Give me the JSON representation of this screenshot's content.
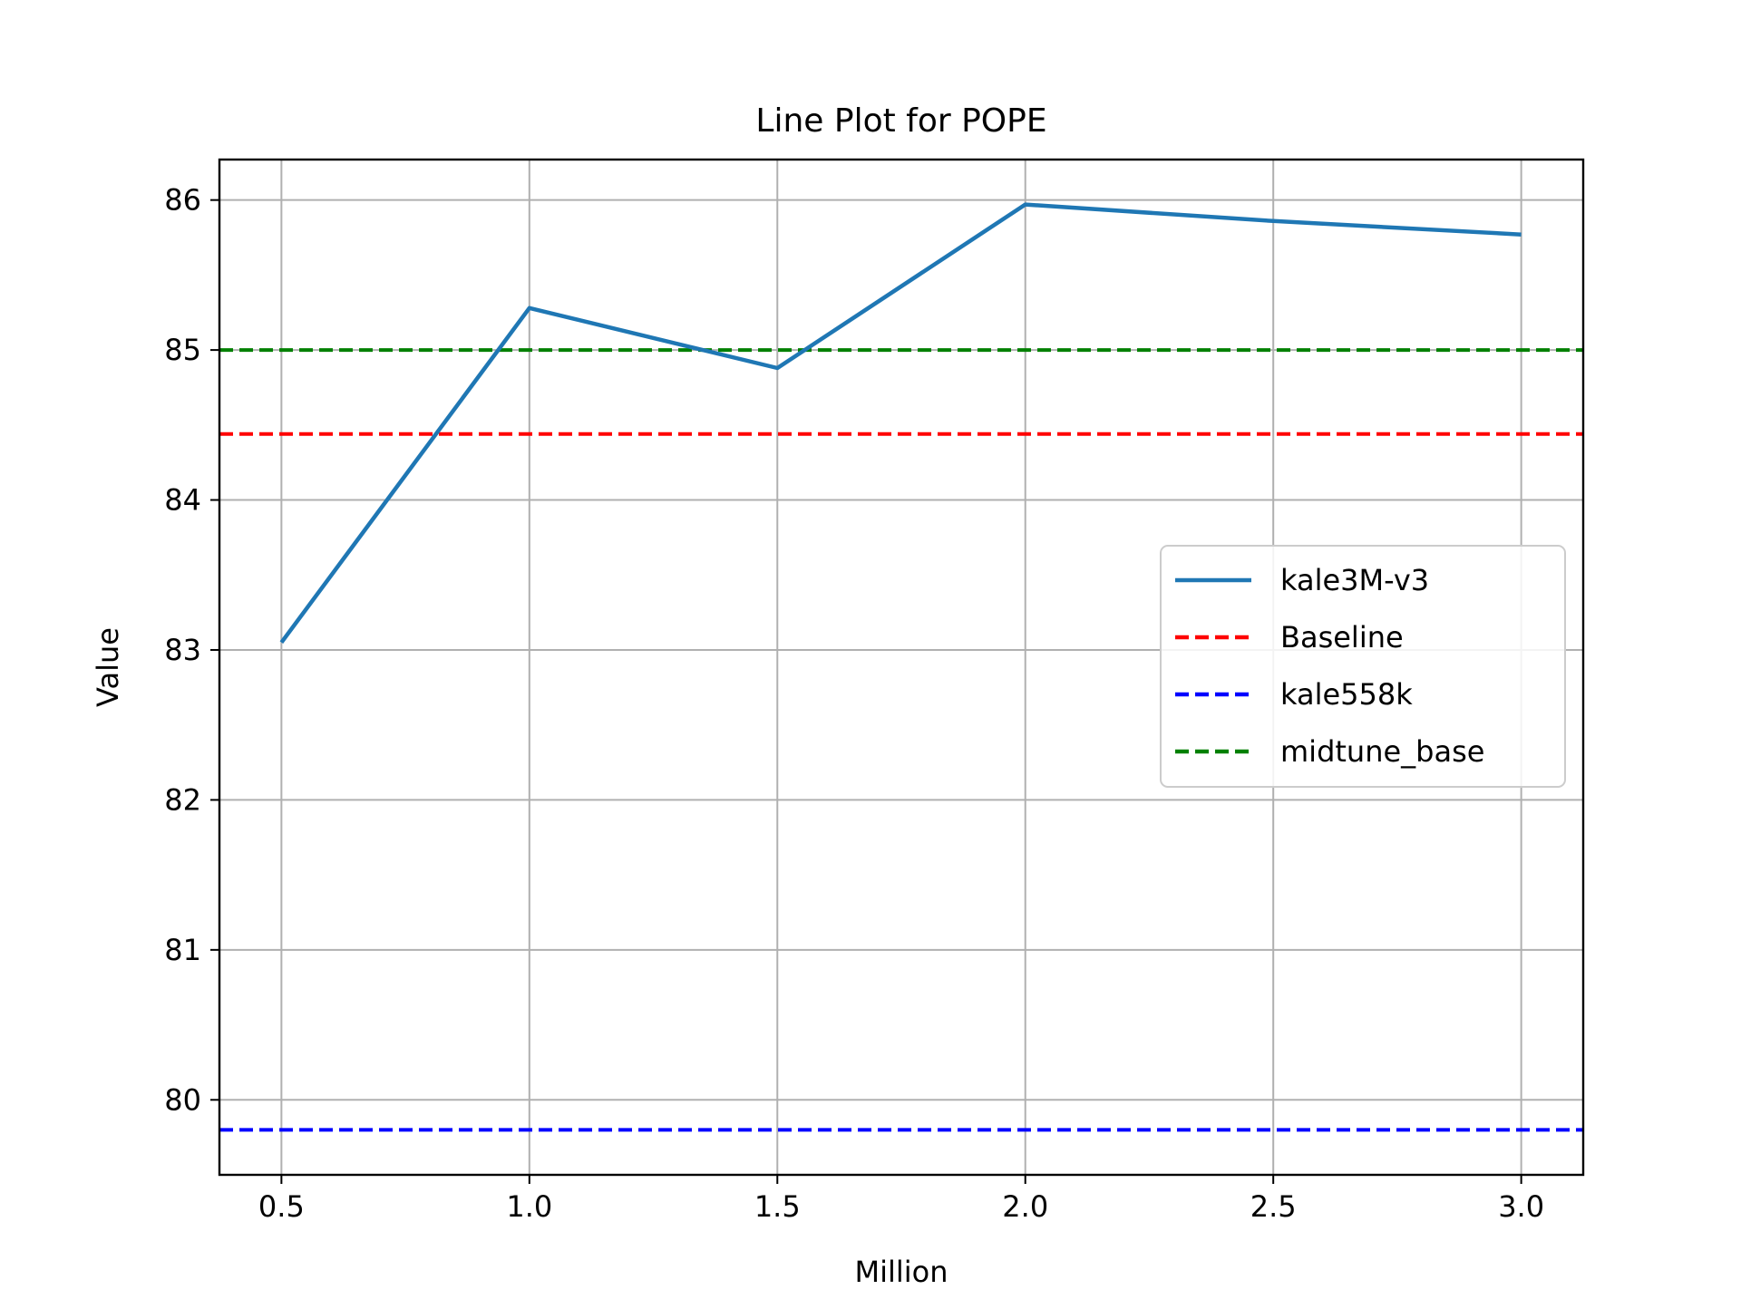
{
  "chart_data": {
    "type": "line",
    "title": "Line Plot for POPE",
    "xlabel": "Million",
    "ylabel": "Value",
    "xlim": [
      0.375,
      3.125
    ],
    "ylim": [
      79.5,
      86.27
    ],
    "xticks": [
      0.5,
      1.0,
      1.5,
      2.0,
      2.5,
      3.0
    ],
    "xtick_labels": [
      "0.5",
      "1.0",
      "1.5",
      "2.0",
      "2.5",
      "3.0"
    ],
    "yticks": [
      80,
      81,
      82,
      83,
      84,
      85,
      86
    ],
    "ytick_labels": [
      "80",
      "81",
      "82",
      "83",
      "84",
      "85",
      "86"
    ],
    "grid": true,
    "legend_position": "center-right",
    "series": [
      {
        "name": "kale3M-v3",
        "style": "solid",
        "color": "#1f77b4",
        "x": [
          0.5,
          1.0,
          1.5,
          2.0,
          2.5,
          3.0
        ],
        "y": [
          83.05,
          85.28,
          84.88,
          85.97,
          85.86,
          85.77
        ]
      },
      {
        "name": "Baseline",
        "style": "dashed",
        "color": "#ff0000",
        "hline": 84.44
      },
      {
        "name": "kale558k",
        "style": "dashed",
        "color": "#0000ff",
        "hline": 79.8
      },
      {
        "name": "midtune_base",
        "style": "dashed",
        "color": "#008000",
        "hline": 85.0
      }
    ]
  }
}
